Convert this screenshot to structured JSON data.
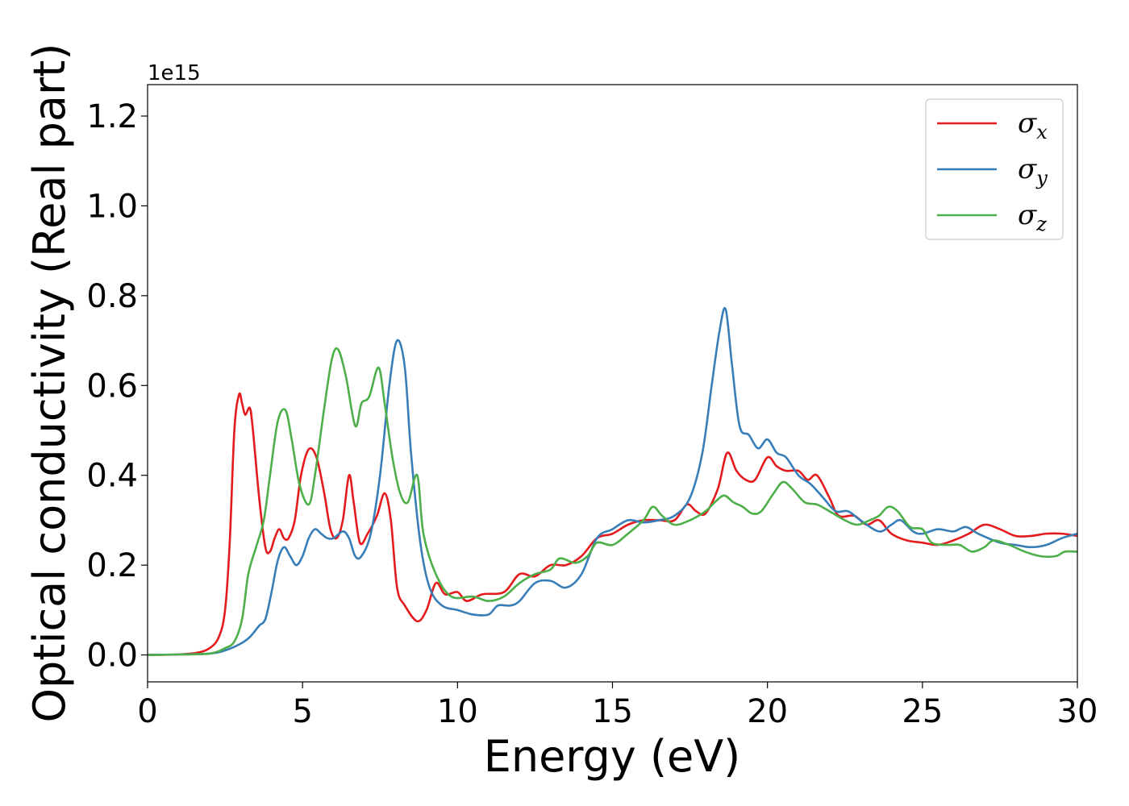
{
  "chart_data": {
    "type": "line",
    "xlabel": "Energy (eV)",
    "ylabel": "Optical conductivity (Real part)",
    "y_offset_label": "1e15",
    "xlim": [
      0,
      30
    ],
    "ylim": [
      -0.06,
      1.27
    ],
    "x_ticks": [
      0,
      5,
      10,
      15,
      20,
      25,
      30
    ],
    "x_tick_labels": [
      "0",
      "5",
      "10",
      "15",
      "20",
      "25",
      "30"
    ],
    "y_ticks": [
      0.0,
      0.2,
      0.4,
      0.6,
      0.8,
      1.0,
      1.2
    ],
    "y_tick_labels": [
      "0.0",
      "0.2",
      "0.4",
      "0.6",
      "0.8",
      "1.0",
      "1.2"
    ],
    "grid": false,
    "legend_position": "top-right",
    "series": [
      {
        "name": "σx",
        "symbol": "σ",
        "subscript": "x",
        "color": "#e41a1c",
        "points": [
          [
            0,
            0
          ],
          [
            1,
            0.001
          ],
          [
            1.6,
            0.005
          ],
          [
            2,
            0.015
          ],
          [
            2.3,
            0.04
          ],
          [
            2.5,
            0.1
          ],
          [
            2.65,
            0.25
          ],
          [
            2.8,
            0.5
          ],
          [
            2.95,
            0.58
          ],
          [
            3.05,
            0.56
          ],
          [
            3.15,
            0.535
          ],
          [
            3.3,
            0.55
          ],
          [
            3.4,
            0.5
          ],
          [
            3.6,
            0.35
          ],
          [
            3.8,
            0.24
          ],
          [
            3.95,
            0.23
          ],
          [
            4.1,
            0.26
          ],
          [
            4.25,
            0.28
          ],
          [
            4.4,
            0.26
          ],
          [
            4.55,
            0.26
          ],
          [
            4.75,
            0.3
          ],
          [
            4.95,
            0.4
          ],
          [
            5.2,
            0.458
          ],
          [
            5.45,
            0.44
          ],
          [
            5.7,
            0.36
          ],
          [
            5.9,
            0.28
          ],
          [
            6.1,
            0.26
          ],
          [
            6.3,
            0.3
          ],
          [
            6.5,
            0.4
          ],
          [
            6.65,
            0.34
          ],
          [
            6.85,
            0.25
          ],
          [
            7.1,
            0.27
          ],
          [
            7.4,
            0.31
          ],
          [
            7.65,
            0.36
          ],
          [
            7.85,
            0.3
          ],
          [
            8.05,
            0.15
          ],
          [
            8.3,
            0.11
          ],
          [
            8.7,
            0.075
          ],
          [
            9,
            0.1
          ],
          [
            9.3,
            0.16
          ],
          [
            9.6,
            0.135
          ],
          [
            10,
            0.14
          ],
          [
            10.3,
            0.12
          ],
          [
            10.8,
            0.135
          ],
          [
            11.5,
            0.14
          ],
          [
            12,
            0.18
          ],
          [
            12.5,
            0.175
          ],
          [
            13,
            0.2
          ],
          [
            13.5,
            0.2
          ],
          [
            14,
            0.22
          ],
          [
            14.5,
            0.26
          ],
          [
            15,
            0.27
          ],
          [
            15.5,
            0.29
          ],
          [
            16,
            0.3
          ],
          [
            16.5,
            0.3
          ],
          [
            17,
            0.3
          ],
          [
            17.4,
            0.335
          ],
          [
            17.7,
            0.32
          ],
          [
            18,
            0.315
          ],
          [
            18.4,
            0.37
          ],
          [
            18.7,
            0.45
          ],
          [
            19,
            0.41
          ],
          [
            19.3,
            0.39
          ],
          [
            19.6,
            0.39
          ],
          [
            20,
            0.44
          ],
          [
            20.3,
            0.42
          ],
          [
            20.6,
            0.41
          ],
          [
            21,
            0.41
          ],
          [
            21.3,
            0.39
          ],
          [
            21.6,
            0.4
          ],
          [
            22,
            0.35
          ],
          [
            22.3,
            0.31
          ],
          [
            22.8,
            0.31
          ],
          [
            23.2,
            0.29
          ],
          [
            23.6,
            0.3
          ],
          [
            24,
            0.27
          ],
          [
            24.5,
            0.255
          ],
          [
            25,
            0.25
          ],
          [
            25.5,
            0.245
          ],
          [
            26,
            0.255
          ],
          [
            26.5,
            0.27
          ],
          [
            27,
            0.29
          ],
          [
            27.5,
            0.28
          ],
          [
            28,
            0.265
          ],
          [
            28.5,
            0.265
          ],
          [
            29,
            0.27
          ],
          [
            29.5,
            0.27
          ],
          [
            30,
            0.265
          ]
        ]
      },
      {
        "name": "σy",
        "symbol": "σ",
        "subscript": "y",
        "color": "#377eb8",
        "points": [
          [
            0,
            0
          ],
          [
            1,
            0.001
          ],
          [
            2,
            0.003
          ],
          [
            2.5,
            0.01
          ],
          [
            3,
            0.025
          ],
          [
            3.3,
            0.04
          ],
          [
            3.6,
            0.065
          ],
          [
            3.8,
            0.08
          ],
          [
            4,
            0.14
          ],
          [
            4.2,
            0.21
          ],
          [
            4.4,
            0.24
          ],
          [
            4.6,
            0.22
          ],
          [
            4.8,
            0.2
          ],
          [
            5,
            0.22
          ],
          [
            5.2,
            0.26
          ],
          [
            5.4,
            0.28
          ],
          [
            5.6,
            0.27
          ],
          [
            5.8,
            0.26
          ],
          [
            6,
            0.26
          ],
          [
            6.3,
            0.275
          ],
          [
            6.5,
            0.26
          ],
          [
            6.7,
            0.22
          ],
          [
            6.9,
            0.22
          ],
          [
            7.2,
            0.27
          ],
          [
            7.5,
            0.4
          ],
          [
            7.8,
            0.6
          ],
          [
            8.05,
            0.7
          ],
          [
            8.3,
            0.64
          ],
          [
            8.5,
            0.45
          ],
          [
            8.8,
            0.25
          ],
          [
            9.1,
            0.15
          ],
          [
            9.5,
            0.11
          ],
          [
            10,
            0.1
          ],
          [
            10.5,
            0.09
          ],
          [
            11,
            0.09
          ],
          [
            11.3,
            0.11
          ],
          [
            11.7,
            0.11
          ],
          [
            12,
            0.12
          ],
          [
            12.5,
            0.16
          ],
          [
            13,
            0.165
          ],
          [
            13.5,
            0.15
          ],
          [
            14,
            0.18
          ],
          [
            14.5,
            0.26
          ],
          [
            15,
            0.28
          ],
          [
            15.5,
            0.3
          ],
          [
            16,
            0.295
          ],
          [
            16.5,
            0.3
          ],
          [
            17,
            0.31
          ],
          [
            17.5,
            0.35
          ],
          [
            17.9,
            0.45
          ],
          [
            18.2,
            0.6
          ],
          [
            18.45,
            0.72
          ],
          [
            18.65,
            0.77
          ],
          [
            18.85,
            0.65
          ],
          [
            19.1,
            0.51
          ],
          [
            19.4,
            0.49
          ],
          [
            19.7,
            0.46
          ],
          [
            20,
            0.48
          ],
          [
            20.3,
            0.45
          ],
          [
            20.6,
            0.44
          ],
          [
            21,
            0.4
          ],
          [
            21.4,
            0.38
          ],
          [
            21.8,
            0.35
          ],
          [
            22.2,
            0.32
          ],
          [
            22.6,
            0.32
          ],
          [
            23,
            0.3
          ],
          [
            23.6,
            0.275
          ],
          [
            24,
            0.29
          ],
          [
            24.3,
            0.3
          ],
          [
            24.7,
            0.275
          ],
          [
            25,
            0.27
          ],
          [
            25.5,
            0.28
          ],
          [
            26,
            0.275
          ],
          [
            26.4,
            0.285
          ],
          [
            26.8,
            0.27
          ],
          [
            27.5,
            0.25
          ],
          [
            28,
            0.245
          ],
          [
            28.5,
            0.24
          ],
          [
            29,
            0.245
          ],
          [
            29.5,
            0.26
          ],
          [
            30,
            0.27
          ]
        ]
      },
      {
        "name": "σz",
        "symbol": "σ",
        "subscript": "z",
        "color": "#4daf4a",
        "points": [
          [
            0,
            0
          ],
          [
            1,
            0.001
          ],
          [
            2,
            0.003
          ],
          [
            2.5,
            0.015
          ],
          [
            2.8,
            0.03
          ],
          [
            3.05,
            0.08
          ],
          [
            3.25,
            0.18
          ],
          [
            3.5,
            0.24
          ],
          [
            3.75,
            0.3
          ],
          [
            3.95,
            0.4
          ],
          [
            4.2,
            0.52
          ],
          [
            4.45,
            0.545
          ],
          [
            4.65,
            0.48
          ],
          [
            4.9,
            0.38
          ],
          [
            5.2,
            0.335
          ],
          [
            5.4,
            0.4
          ],
          [
            5.7,
            0.55
          ],
          [
            5.95,
            0.66
          ],
          [
            6.15,
            0.68
          ],
          [
            6.4,
            0.62
          ],
          [
            6.7,
            0.51
          ],
          [
            6.9,
            0.56
          ],
          [
            7.15,
            0.575
          ],
          [
            7.45,
            0.64
          ],
          [
            7.65,
            0.56
          ],
          [
            7.9,
            0.44
          ],
          [
            8.15,
            0.36
          ],
          [
            8.4,
            0.34
          ],
          [
            8.7,
            0.4
          ],
          [
            8.9,
            0.27
          ],
          [
            9.3,
            0.18
          ],
          [
            9.8,
            0.13
          ],
          [
            10.5,
            0.13
          ],
          [
            11,
            0.12
          ],
          [
            11.5,
            0.13
          ],
          [
            12,
            0.16
          ],
          [
            12.5,
            0.18
          ],
          [
            13,
            0.19
          ],
          [
            13.3,
            0.215
          ],
          [
            13.8,
            0.205
          ],
          [
            14.2,
            0.22
          ],
          [
            14.5,
            0.25
          ],
          [
            15,
            0.245
          ],
          [
            15.5,
            0.27
          ],
          [
            16,
            0.3
          ],
          [
            16.3,
            0.33
          ],
          [
            16.6,
            0.31
          ],
          [
            17,
            0.29
          ],
          [
            17.5,
            0.3
          ],
          [
            18,
            0.32
          ],
          [
            18.3,
            0.34
          ],
          [
            18.6,
            0.355
          ],
          [
            18.9,
            0.34
          ],
          [
            19.2,
            0.33
          ],
          [
            19.5,
            0.315
          ],
          [
            19.8,
            0.32
          ],
          [
            20.2,
            0.36
          ],
          [
            20.5,
            0.385
          ],
          [
            20.8,
            0.37
          ],
          [
            21.2,
            0.34
          ],
          [
            21.6,
            0.335
          ],
          [
            22,
            0.32
          ],
          [
            22.5,
            0.3
          ],
          [
            22.9,
            0.29
          ],
          [
            23.3,
            0.3
          ],
          [
            23.6,
            0.31
          ],
          [
            23.9,
            0.33
          ],
          [
            24.2,
            0.32
          ],
          [
            24.6,
            0.285
          ],
          [
            25,
            0.28
          ],
          [
            25.3,
            0.25
          ],
          [
            25.8,
            0.245
          ],
          [
            26.2,
            0.245
          ],
          [
            26.6,
            0.23
          ],
          [
            27,
            0.24
          ],
          [
            27.3,
            0.255
          ],
          [
            27.8,
            0.245
          ],
          [
            28.3,
            0.23
          ],
          [
            28.8,
            0.22
          ],
          [
            29.3,
            0.22
          ],
          [
            29.6,
            0.23
          ],
          [
            30,
            0.23
          ]
        ]
      }
    ]
  }
}
